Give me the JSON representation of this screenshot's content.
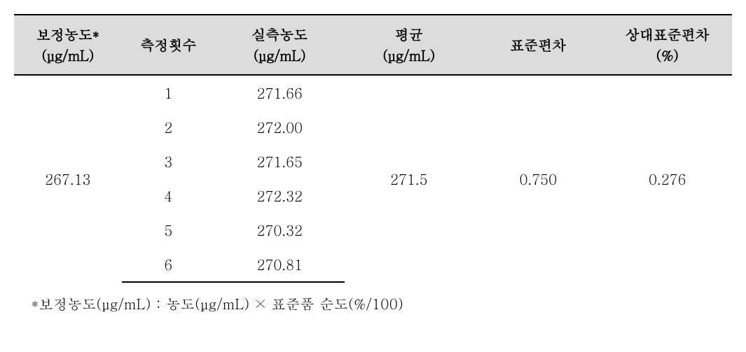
{
  "table": {
    "columns": [
      {
        "header_line1": "보정농도*",
        "header_line2": "(μg/mL)"
      },
      {
        "header_line1": "측정횟수",
        "header_line2": ""
      },
      {
        "header_line1": "실측농도",
        "header_line2": "(μg/mL)"
      },
      {
        "header_line1": "평균",
        "header_line2": "(μg/mL)"
      },
      {
        "header_line1": "표준편차",
        "header_line2": ""
      },
      {
        "header_line1": "상대표준편차",
        "header_line2": "(%)"
      }
    ],
    "corrected_concentration": "267.13",
    "measurements": [
      {
        "num": "1",
        "value": "271.66"
      },
      {
        "num": "2",
        "value": "272.00"
      },
      {
        "num": "3",
        "value": "271.65"
      },
      {
        "num": "4",
        "value": "272.32"
      },
      {
        "num": "5",
        "value": "270.32"
      },
      {
        "num": "6",
        "value": "270.81"
      }
    ],
    "mean": "271.5",
    "std_dev": "0.750",
    "rsd": "0.276",
    "header_bg": "#dcdcdc",
    "border_color": "#000000",
    "font_size": 20
  },
  "footnote": "*보정농도(μg/mL) : 농도(μg/mL) × 표준품 순도(%/100)"
}
